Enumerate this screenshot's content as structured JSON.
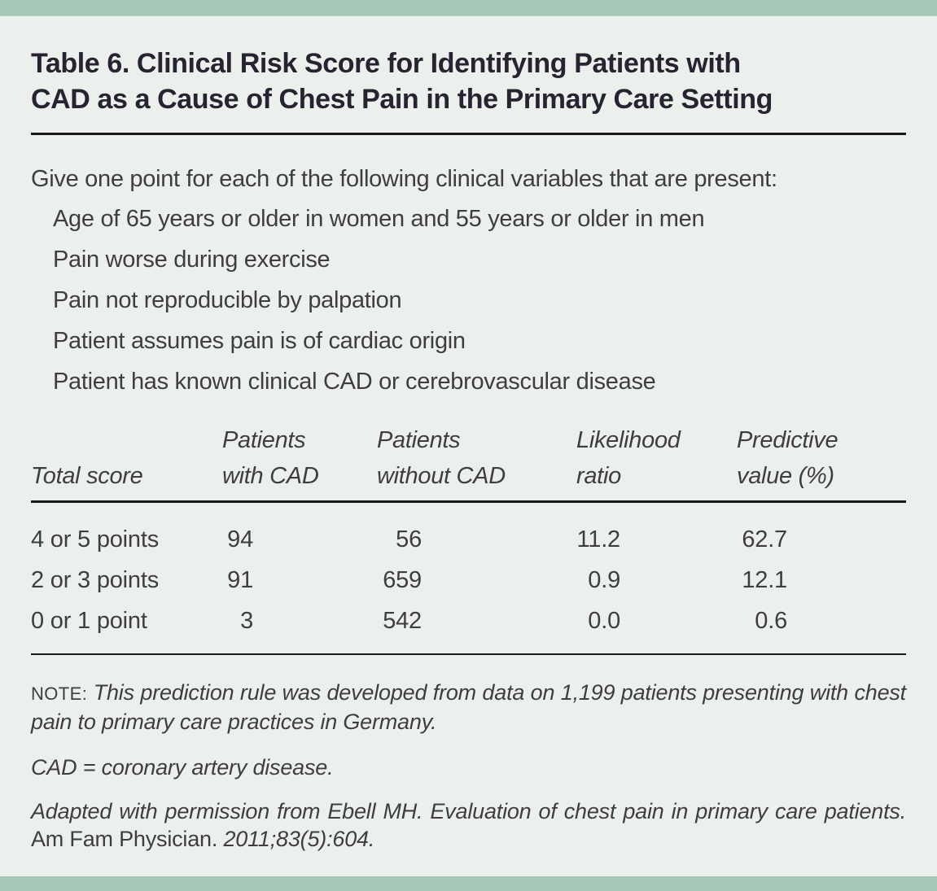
{
  "colors": {
    "accent_bar": "#a6c7b8",
    "background": "#ebf0ed",
    "title_text": "#272330",
    "body_text": "#3f3d3e",
    "rule": "#1a181a"
  },
  "card": {
    "title_lines": [
      "Table 6. Clinical Risk Score for Identifying Patients with",
      "CAD as a Cause of Chest Pain in the Primary Care Setting"
    ],
    "intro": "Give one point for each of the following clinical variables that are present:",
    "criteria": [
      "Age of 65 years or older in women and 55 years or older in men",
      "Pain worse during exercise",
      "Pain not reproducible by palpation",
      "Patient assumes pain is of cardiac origin",
      "Patient has known clinical CAD or cerebrovascular disease"
    ],
    "table": {
      "headers": [
        {
          "l1": "",
          "l2": "Total score"
        },
        {
          "l1": "Patients",
          "l2": "with CAD"
        },
        {
          "l1": "Patients",
          "l2": "without CAD"
        },
        {
          "l1": "Likelihood",
          "l2": "ratio"
        },
        {
          "l1": "Predictive",
          "l2": "value (%)"
        }
      ],
      "rows": [
        {
          "score": "4 or 5 points",
          "with_cad": "94",
          "without_cad": "56",
          "likelihood_ratio": "11.2",
          "predictive_value": "62.7"
        },
        {
          "score": "2 or 3 points",
          "with_cad": "91",
          "without_cad": "659",
          "likelihood_ratio": "0.9",
          "predictive_value": "12.1"
        },
        {
          "score": "0 or 1 point",
          "with_cad": "3",
          "without_cad": "542",
          "likelihood_ratio": "0.0",
          "predictive_value": "0.6"
        }
      ]
    },
    "note": {
      "label": "NOTE:",
      "text": "This prediction rule was developed from data on 1,199 patients presenting with chest pain to primary care practices in Germany."
    },
    "abbreviation": "CAD = coronary artery disease.",
    "citation": {
      "italic_part1": "Adapted with permission from Ebell MH. Evaluation of chest pain in primary care patients.",
      "roman_part": "Am Fam Physician.",
      "italic_part2": "2011;83(5):604."
    }
  }
}
